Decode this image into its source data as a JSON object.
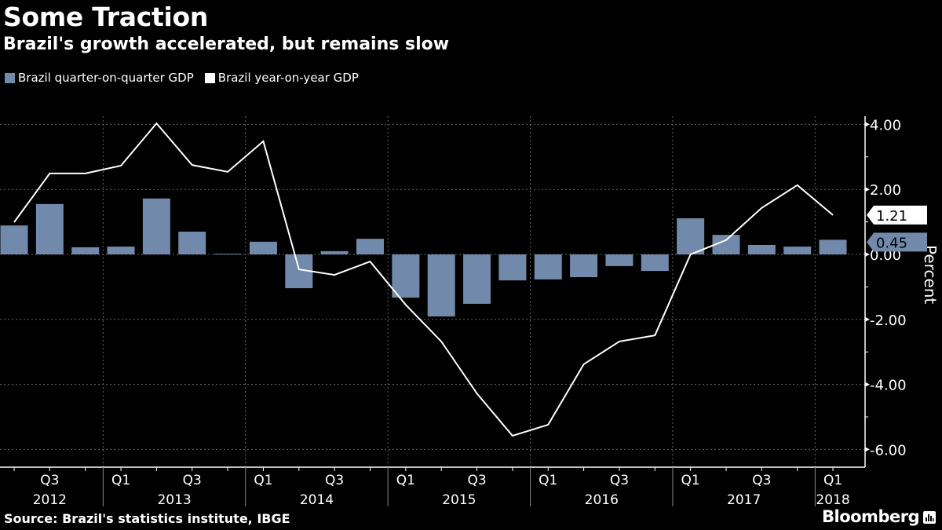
{
  "header": {
    "title": "Some Traction",
    "subtitle": "Brazil's growth accelerated, but remains slow"
  },
  "footer": {
    "source": "Source: Brazil's statistics institute, IBGE",
    "brand": "Bloomberg",
    "brand_icon": "bloomberg-chart-icon"
  },
  "colors": {
    "background": "#000000",
    "bar": "#7189aa",
    "line": "#ffffff",
    "grid": "#666666"
  },
  "chart_data": {
    "type": "bar+line",
    "title": "Some Traction",
    "subtitle": "Brazil's growth accelerated, but remains slow",
    "xlabel": "",
    "ylabel": "Percent",
    "ylim": [
      -6.6,
      4.0
    ],
    "yticks": [
      4,
      2,
      0,
      -2,
      -4,
      -6
    ],
    "ytick_labels": [
      "4.00",
      "2.00",
      "0.00",
      "-2.00",
      "-4.00",
      "-6.00"
    ],
    "grid": true,
    "legend_position": "top-left",
    "x": [
      "Q2 2012",
      "Q3 2012",
      "Q4 2012",
      "Q1 2013",
      "Q2 2013",
      "Q3 2013",
      "Q4 2013",
      "Q1 2014",
      "Q2 2014",
      "Q3 2014",
      "Q4 2014",
      "Q1 2015",
      "Q2 2015",
      "Q3 2015",
      "Q4 2015",
      "Q1 2016",
      "Q2 2016",
      "Q3 2016",
      "Q4 2016",
      "Q1 2017",
      "Q2 2017",
      "Q3 2017",
      "Q4 2017",
      "Q1 2018"
    ],
    "quarter_labels": [
      {
        "index": 1,
        "label": "Q3"
      },
      {
        "index": 3,
        "label": "Q1"
      },
      {
        "index": 5,
        "label": "Q3"
      },
      {
        "index": 7,
        "label": "Q1"
      },
      {
        "index": 9,
        "label": "Q3"
      },
      {
        "index": 11,
        "label": "Q1"
      },
      {
        "index": 13,
        "label": "Q3"
      },
      {
        "index": 15,
        "label": "Q1"
      },
      {
        "index": 17,
        "label": "Q3"
      },
      {
        "index": 19,
        "label": "Q1"
      },
      {
        "index": 21,
        "label": "Q3"
      },
      {
        "index": 23,
        "label": "Q1"
      }
    ],
    "year_labels": [
      {
        "start": 0,
        "end": 2,
        "label": "2012"
      },
      {
        "start": 3,
        "end": 6,
        "label": "2013"
      },
      {
        "start": 7,
        "end": 10,
        "label": "2014"
      },
      {
        "start": 11,
        "end": 14,
        "label": "2015"
      },
      {
        "start": 15,
        "end": 18,
        "label": "2016"
      },
      {
        "start": 19,
        "end": 22,
        "label": "2017"
      },
      {
        "start": 23,
        "end": 23,
        "label": "2018"
      }
    ],
    "series": [
      {
        "name": "Brazil quarter-on-quarter GDP",
        "kind": "bar",
        "color": "#7189aa",
        "values": [
          0.89,
          1.55,
          0.22,
          0.24,
          1.72,
          0.7,
          0.02,
          0.39,
          -1.04,
          0.1,
          0.48,
          -1.33,
          -1.91,
          -1.52,
          -0.8,
          -0.77,
          -0.7,
          -0.36,
          -0.51,
          1.11,
          0.6,
          0.29,
          0.24,
          0.45
        ],
        "last_value_label": "0.45"
      },
      {
        "name": "Brazil year-on-year GDP",
        "kind": "line",
        "color": "#ffffff",
        "values": [
          0.99,
          2.49,
          2.49,
          2.73,
          4.03,
          2.75,
          2.54,
          3.48,
          -0.46,
          -0.63,
          -0.22,
          -1.55,
          -2.68,
          -4.28,
          -5.58,
          -5.24,
          -3.38,
          -2.68,
          -2.49,
          0.0,
          0.44,
          1.43,
          2.13,
          1.21
        ],
        "last_value_label": "1.21"
      }
    ]
  }
}
